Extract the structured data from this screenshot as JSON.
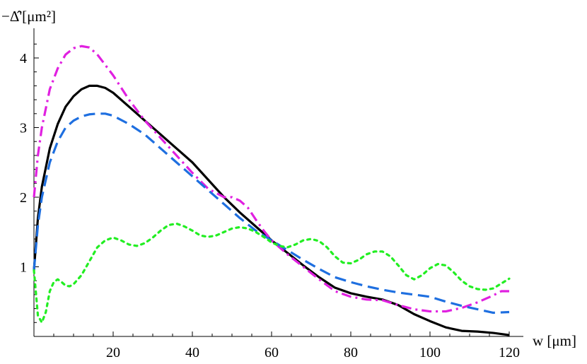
{
  "chart_data": {
    "type": "line",
    "ylabel": "−Δ̂'[μm²]",
    "xlabel": "w [μm]",
    "xlim": [
      0,
      120
    ],
    "ylim": [
      0,
      4.25
    ],
    "grid": false,
    "x_ticks": [
      "20",
      "40",
      "60",
      "80",
      "100",
      "120"
    ],
    "y_ticks": [
      "1",
      "2",
      "3",
      "4"
    ],
    "series": [
      {
        "color": "#000000",
        "style": "solid",
        "points": [
          [
            0,
            0.95
          ],
          [
            1,
            1.7
          ],
          [
            2,
            2.15
          ],
          [
            4,
            2.7
          ],
          [
            6,
            3.05
          ],
          [
            8,
            3.3
          ],
          [
            10,
            3.45
          ],
          [
            12,
            3.55
          ],
          [
            14,
            3.6
          ],
          [
            16,
            3.6
          ],
          [
            18,
            3.57
          ],
          [
            20,
            3.5
          ],
          [
            24,
            3.3
          ],
          [
            28,
            3.1
          ],
          [
            32,
            2.9
          ],
          [
            36,
            2.7
          ],
          [
            40,
            2.5
          ],
          [
            44,
            2.25
          ],
          [
            48,
            2.0
          ],
          [
            52,
            1.78
          ],
          [
            56,
            1.58
          ],
          [
            60,
            1.38
          ],
          [
            64,
            1.2
          ],
          [
            68,
            1.02
          ],
          [
            72,
            0.85
          ],
          [
            76,
            0.7
          ],
          [
            80,
            0.62
          ],
          [
            84,
            0.57
          ],
          [
            88,
            0.53
          ],
          [
            92,
            0.45
          ],
          [
            96,
            0.32
          ],
          [
            100,
            0.22
          ],
          [
            104,
            0.13
          ],
          [
            108,
            0.08
          ],
          [
            112,
            0.07
          ],
          [
            116,
            0.05
          ],
          [
            120,
            0.02
          ]
        ]
      },
      {
        "color": "#e020e0",
        "style": "dash-dot",
        "points": [
          [
            0,
            2.0
          ],
          [
            1,
            2.6
          ],
          [
            2,
            3.0
          ],
          [
            4,
            3.55
          ],
          [
            6,
            3.85
          ],
          [
            8,
            4.05
          ],
          [
            10,
            4.14
          ],
          [
            12,
            4.17
          ],
          [
            14,
            4.15
          ],
          [
            16,
            4.05
          ],
          [
            20,
            3.75
          ],
          [
            24,
            3.4
          ],
          [
            28,
            3.1
          ],
          [
            32,
            2.85
          ],
          [
            36,
            2.6
          ],
          [
            40,
            2.35
          ],
          [
            44,
            2.12
          ],
          [
            48,
            2.0
          ],
          [
            50,
            2.0
          ],
          [
            52,
            1.95
          ],
          [
            54,
            1.85
          ],
          [
            56,
            1.68
          ],
          [
            58,
            1.52
          ],
          [
            60,
            1.38
          ],
          [
            64,
            1.18
          ],
          [
            68,
            1.0
          ],
          [
            72,
            0.82
          ],
          [
            76,
            0.65
          ],
          [
            80,
            0.57
          ],
          [
            84,
            0.53
          ],
          [
            88,
            0.52
          ],
          [
            92,
            0.45
          ],
          [
            96,
            0.39
          ],
          [
            100,
            0.36
          ],
          [
            104,
            0.36
          ],
          [
            108,
            0.41
          ],
          [
            112,
            0.49
          ],
          [
            116,
            0.59
          ],
          [
            118,
            0.65
          ],
          [
            120,
            0.65
          ]
        ]
      },
      {
        "color": "#1e6fe0",
        "style": "dashed",
        "points": [
          [
            0,
            0.95
          ],
          [
            1,
            1.6
          ],
          [
            2,
            2.0
          ],
          [
            4,
            2.5
          ],
          [
            6,
            2.8
          ],
          [
            8,
            3.0
          ],
          [
            10,
            3.1
          ],
          [
            12,
            3.16
          ],
          [
            14,
            3.19
          ],
          [
            16,
            3.2
          ],
          [
            18,
            3.2
          ],
          [
            20,
            3.17
          ],
          [
            24,
            3.05
          ],
          [
            28,
            2.9
          ],
          [
            32,
            2.7
          ],
          [
            36,
            2.5
          ],
          [
            40,
            2.3
          ],
          [
            44,
            2.1
          ],
          [
            48,
            1.9
          ],
          [
            52,
            1.7
          ],
          [
            56,
            1.52
          ],
          [
            60,
            1.38
          ],
          [
            64,
            1.24
          ],
          [
            68,
            1.1
          ],
          [
            72,
            0.97
          ],
          [
            76,
            0.85
          ],
          [
            80,
            0.78
          ],
          [
            84,
            0.72
          ],
          [
            88,
            0.67
          ],
          [
            92,
            0.63
          ],
          [
            96,
            0.6
          ],
          [
            100,
            0.57
          ],
          [
            104,
            0.5
          ],
          [
            108,
            0.44
          ],
          [
            112,
            0.39
          ],
          [
            116,
            0.34
          ],
          [
            120,
            0.35
          ]
        ]
      },
      {
        "color": "#22ee22",
        "style": "dotted",
        "points": [
          [
            0,
            0.95
          ],
          [
            1,
            0.3
          ],
          [
            2,
            0.2
          ],
          [
            3,
            0.35
          ],
          [
            4,
            0.65
          ],
          [
            5,
            0.78
          ],
          [
            6,
            0.82
          ],
          [
            7,
            0.78
          ],
          [
            8,
            0.73
          ],
          [
            9,
            0.72
          ],
          [
            10,
            0.75
          ],
          [
            12,
            0.88
          ],
          [
            14,
            1.08
          ],
          [
            16,
            1.28
          ],
          [
            18,
            1.38
          ],
          [
            20,
            1.42
          ],
          [
            22,
            1.38
          ],
          [
            24,
            1.32
          ],
          [
            26,
            1.3
          ],
          [
            28,
            1.34
          ],
          [
            30,
            1.42
          ],
          [
            32,
            1.52
          ],
          [
            34,
            1.6
          ],
          [
            36,
            1.62
          ],
          [
            38,
            1.58
          ],
          [
            40,
            1.52
          ],
          [
            42,
            1.45
          ],
          [
            44,
            1.43
          ],
          [
            46,
            1.45
          ],
          [
            48,
            1.5
          ],
          [
            50,
            1.55
          ],
          [
            52,
            1.57
          ],
          [
            54,
            1.55
          ],
          [
            56,
            1.5
          ],
          [
            58,
            1.43
          ],
          [
            60,
            1.35
          ],
          [
            62,
            1.3
          ],
          [
            64,
            1.28
          ],
          [
            66,
            1.32
          ],
          [
            68,
            1.38
          ],
          [
            70,
            1.4
          ],
          [
            72,
            1.37
          ],
          [
            74,
            1.28
          ],
          [
            76,
            1.15
          ],
          [
            78,
            1.06
          ],
          [
            80,
            1.05
          ],
          [
            82,
            1.1
          ],
          [
            84,
            1.18
          ],
          [
            86,
            1.22
          ],
          [
            88,
            1.22
          ],
          [
            90,
            1.15
          ],
          [
            92,
            1.02
          ],
          [
            94,
            0.88
          ],
          [
            96,
            0.82
          ],
          [
            98,
            0.88
          ],
          [
            100,
            0.98
          ],
          [
            102,
            1.04
          ],
          [
            104,
            1.02
          ],
          [
            106,
            0.92
          ],
          [
            108,
            0.8
          ],
          [
            110,
            0.72
          ],
          [
            112,
            0.68
          ],
          [
            114,
            0.67
          ],
          [
            116,
            0.69
          ],
          [
            118,
            0.76
          ],
          [
            120,
            0.83
          ]
        ]
      }
    ]
  }
}
